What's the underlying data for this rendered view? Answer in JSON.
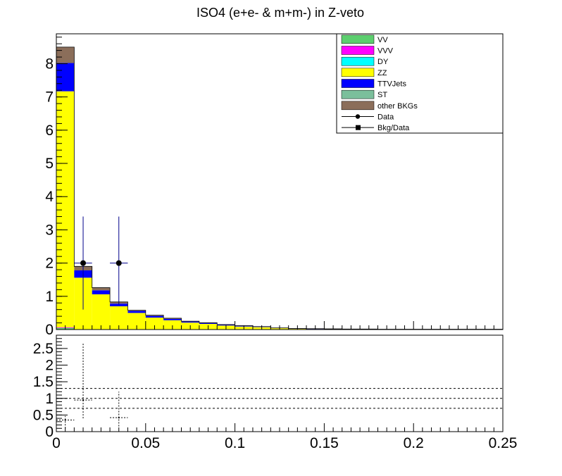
{
  "chart_data": [
    {
      "type": "bar",
      "stacked": true,
      "title": "ISO4 (e+e- & m+m-) in Z-veto",
      "xlim": [
        0,
        0.25
      ],
      "ylim": [
        0,
        8.9
      ],
      "yticks": [
        "0",
        "1",
        "2",
        "3",
        "4",
        "5",
        "6",
        "7",
        "8"
      ],
      "bin_edges": [
        0,
        0.01,
        0.02,
        0.03,
        0.04,
        0.05,
        0.06,
        0.07,
        0.08,
        0.09,
        0.1,
        0.11,
        0.12,
        0.13,
        0.14,
        0.15,
        0.16,
        0.17,
        0.18,
        0.19,
        0.2,
        0.21,
        0.22,
        0.23,
        0.24,
        0.25
      ],
      "legend": [
        {
          "name": "VV",
          "color": "#5ccf6e",
          "style": "box"
        },
        {
          "name": "VVV",
          "color": "#ff00ff",
          "style": "box"
        },
        {
          "name": "DY",
          "color": "#00ffff",
          "style": "box"
        },
        {
          "name": "ZZ",
          "color": "#ffff00",
          "style": "box"
        },
        {
          "name": "TTVJets",
          "color": "#0000ff",
          "style": "box"
        },
        {
          "name": "ST",
          "color": "#7bbf9b",
          "style": "box"
        },
        {
          "name": "other BKGs",
          "color": "#8b6e5a",
          "style": "box"
        },
        {
          "name": "Data",
          "color": "#000000",
          "style": "circle"
        },
        {
          "name": "Bkg/Data",
          "color": "#000000",
          "style": "square"
        }
      ],
      "series": [
        {
          "name": "VV",
          "color": "#5ccf6e",
          "values": [
            0.05,
            0.01,
            0.01,
            0,
            0,
            0,
            0,
            0,
            0,
            0,
            0,
            0,
            0,
            0,
            0,
            0,
            0,
            0,
            0,
            0,
            0,
            0,
            0,
            0,
            0
          ]
        },
        {
          "name": "VVV",
          "color": "#ff00ff",
          "values": [
            0.02,
            0,
            0,
            0,
            0,
            0,
            0,
            0,
            0,
            0,
            0,
            0,
            0,
            0,
            0,
            0,
            0,
            0,
            0,
            0,
            0,
            0,
            0,
            0,
            0
          ]
        },
        {
          "name": "DY",
          "color": "#00ffff",
          "values": [
            0,
            0,
            0,
            0,
            0,
            0,
            0,
            0,
            0,
            0,
            0,
            0,
            0,
            0,
            0,
            0,
            0,
            0,
            0,
            0,
            0,
            0,
            0,
            0,
            0
          ]
        },
        {
          "name": "ZZ",
          "color": "#ffff00",
          "values": [
            7.1,
            1.55,
            1.05,
            0.7,
            0.5,
            0.36,
            0.28,
            0.21,
            0.17,
            0.12,
            0.09,
            0.07,
            0.04,
            0.025,
            0.015,
            0.01,
            0.01,
            0.01,
            0.005,
            0.005,
            0.005,
            0.005,
            0.005,
            0.005,
            0.005
          ]
        },
        {
          "name": "TTVJets",
          "color": "#0000ff",
          "values": [
            0.85,
            0.22,
            0.12,
            0.08,
            0.06,
            0.05,
            0.04,
            0.03,
            0.025,
            0.02,
            0.015,
            0.01,
            0.01,
            0.01,
            0.01,
            0.01,
            0.005,
            0.005,
            0.005,
            0.005,
            0.005,
            0.005,
            0.005,
            0.005,
            0.005
          ]
        },
        {
          "name": "ST",
          "color": "#7bbf9b",
          "values": [
            0,
            0,
            0,
            0,
            0,
            0,
            0,
            0,
            0,
            0,
            0,
            0,
            0,
            0,
            0,
            0,
            0,
            0,
            0,
            0,
            0,
            0,
            0,
            0,
            0
          ]
        },
        {
          "name": "other BKGs",
          "color": "#8b6e5a",
          "values": [
            0.48,
            0.12,
            0.08,
            0.05,
            0.02,
            0.02,
            0.02,
            0.01,
            0.01,
            0.01,
            0.01,
            0.01,
            0,
            0,
            0,
            0,
            0,
            0,
            0,
            0,
            0,
            0,
            0,
            0,
            0
          ]
        }
      ],
      "data_points": [
        {
          "x": 0.015,
          "y": 2,
          "yerr_low": 1.4,
          "yerr_high": 1.4,
          "xerr": 0.005
        },
        {
          "x": 0.035,
          "y": 2,
          "yerr_low": 1.25,
          "yerr_high": 1.4,
          "xerr": 0.005
        }
      ]
    },
    {
      "type": "scatter",
      "ylabel": "",
      "xlim": [
        0,
        0.25
      ],
      "ylim": [
        0,
        2.9
      ],
      "xticks": [
        "0",
        "0.05",
        "0.1",
        "0.15",
        "0.2",
        "0.25"
      ],
      "yticks": [
        "0",
        "0.5",
        "1",
        "1.5",
        "2",
        "2.5"
      ],
      "reference_lines": [
        0.7,
        1.0,
        1.3
      ],
      "points": [
        {
          "x": 0.005,
          "y": 0.35,
          "yerr_low": 0.25,
          "yerr_high": 0.12,
          "xerr": 0.005
        },
        {
          "x": 0.015,
          "y": 0.95,
          "yerr_low": 0.55,
          "yerr_high": 1.7,
          "xerr": 0.005
        },
        {
          "x": 0.035,
          "y": 0.42,
          "yerr_low": 0.26,
          "yerr_high": 0.78,
          "xerr": 0.005
        }
      ]
    }
  ]
}
